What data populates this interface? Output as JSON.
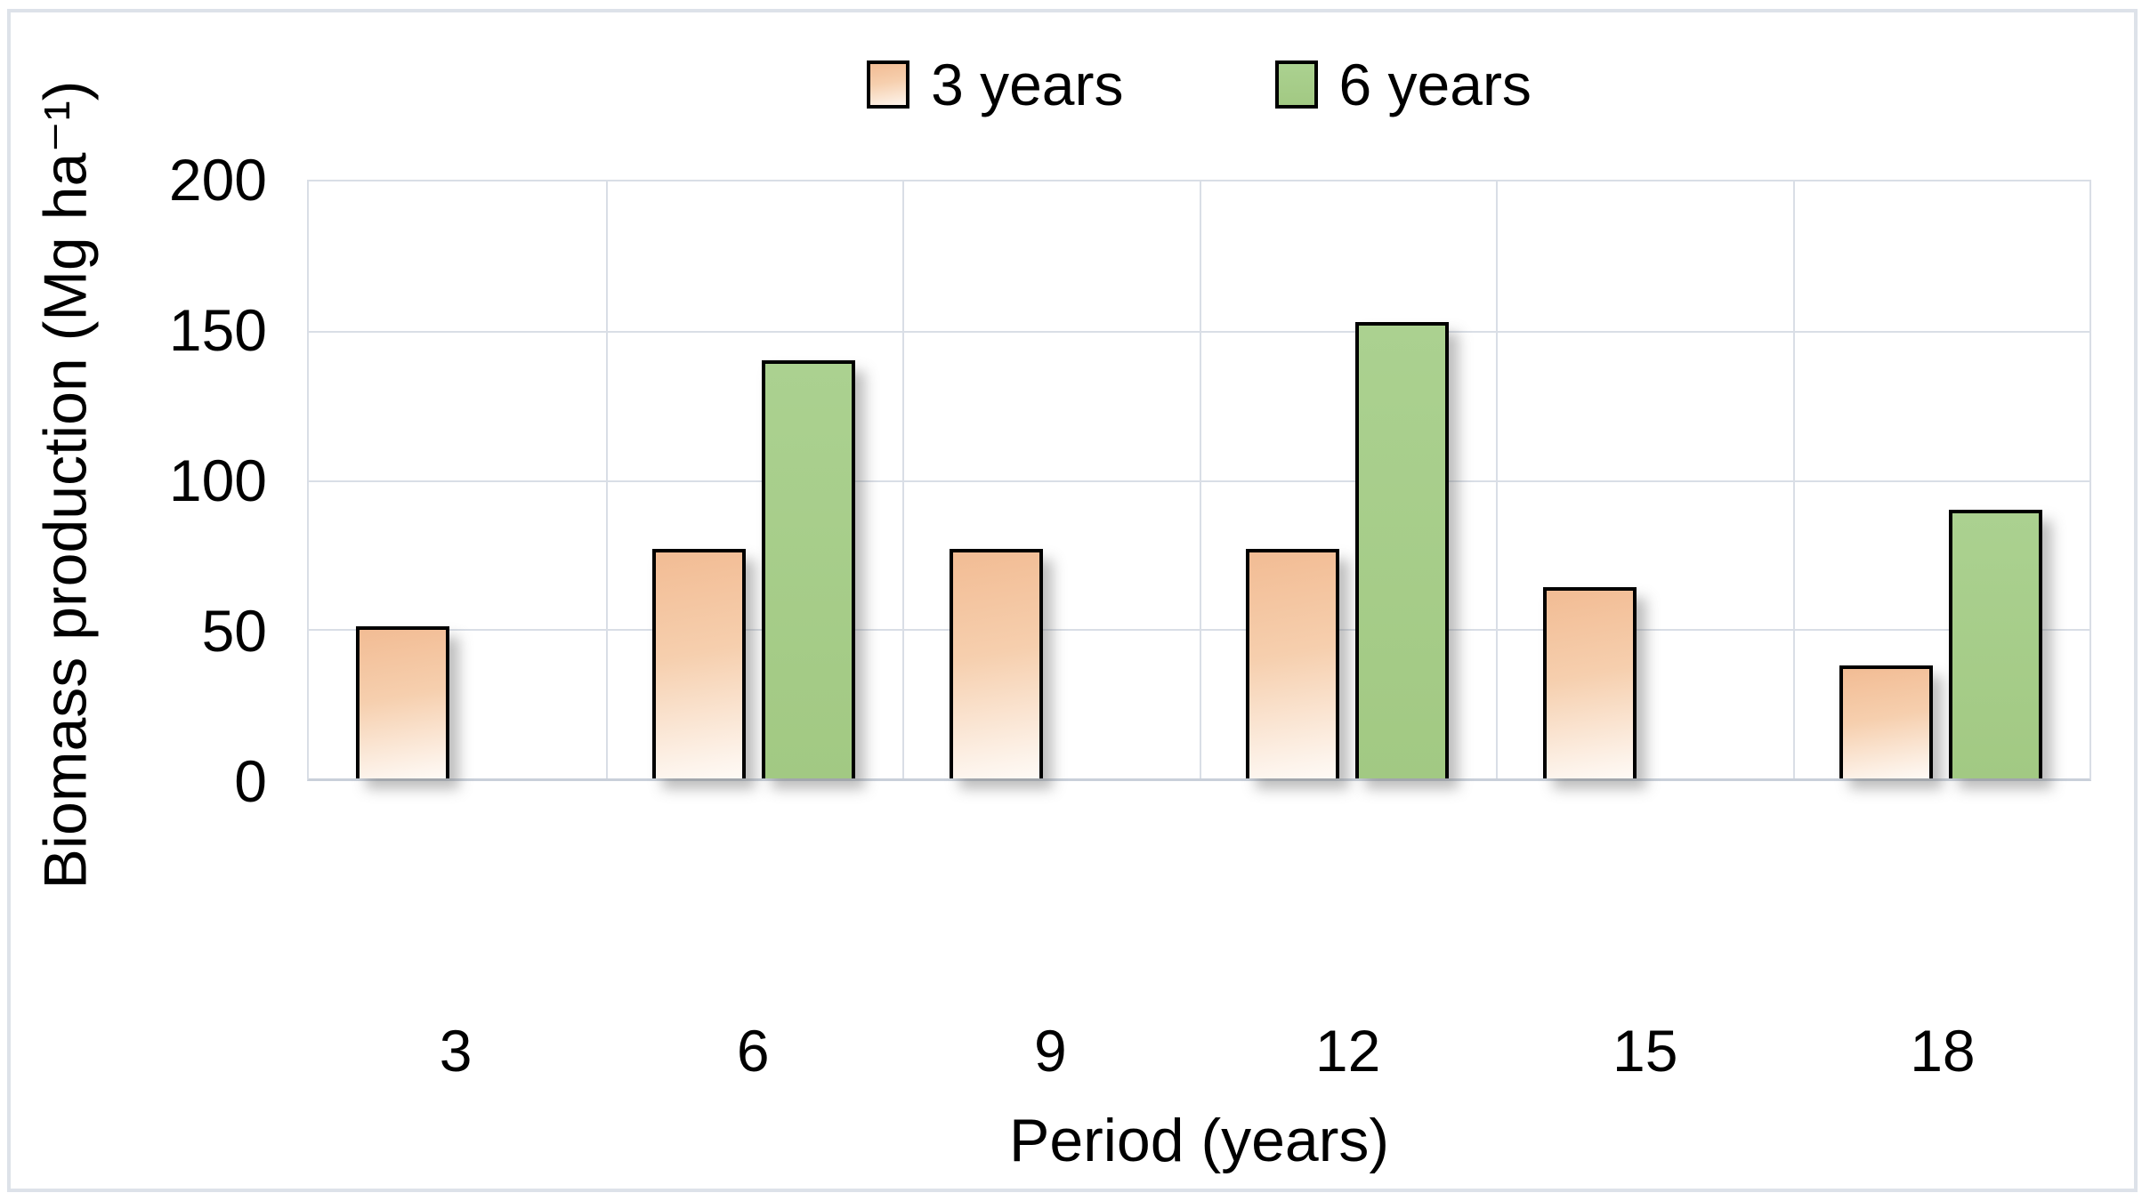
{
  "chart_data": {
    "type": "bar",
    "title": "",
    "categories": [
      "3",
      "6",
      "9",
      "12",
      "15",
      "18"
    ],
    "series": [
      {
        "name": "3 years",
        "color": "peach",
        "color_top": "#f2bc94",
        "color_bottom": "#fdf4ec",
        "values": [
          51,
          77,
          77,
          77,
          64,
          38
        ]
      },
      {
        "name": "6 years",
        "color": "green",
        "color_top": "#abd190",
        "color_bottom": "#a2c983",
        "values": [
          null,
          140,
          null,
          153,
          null,
          90
        ]
      }
    ],
    "xlabel": "Period (years)",
    "ylabel": "Biomass production (Mg ha⁻¹)",
    "ylim": [
      0,
      200
    ],
    "yticks": [
      0,
      50,
      100,
      150,
      200
    ],
    "grid": true,
    "legend_position": "top center",
    "bar_outline_color": "#000000",
    "gridline_color": "#d9dee6",
    "axis_line_color": "#c9d0da",
    "frame_border_color": "#dde2e9",
    "background_color": "#ffffff",
    "text_color": "#000000"
  }
}
